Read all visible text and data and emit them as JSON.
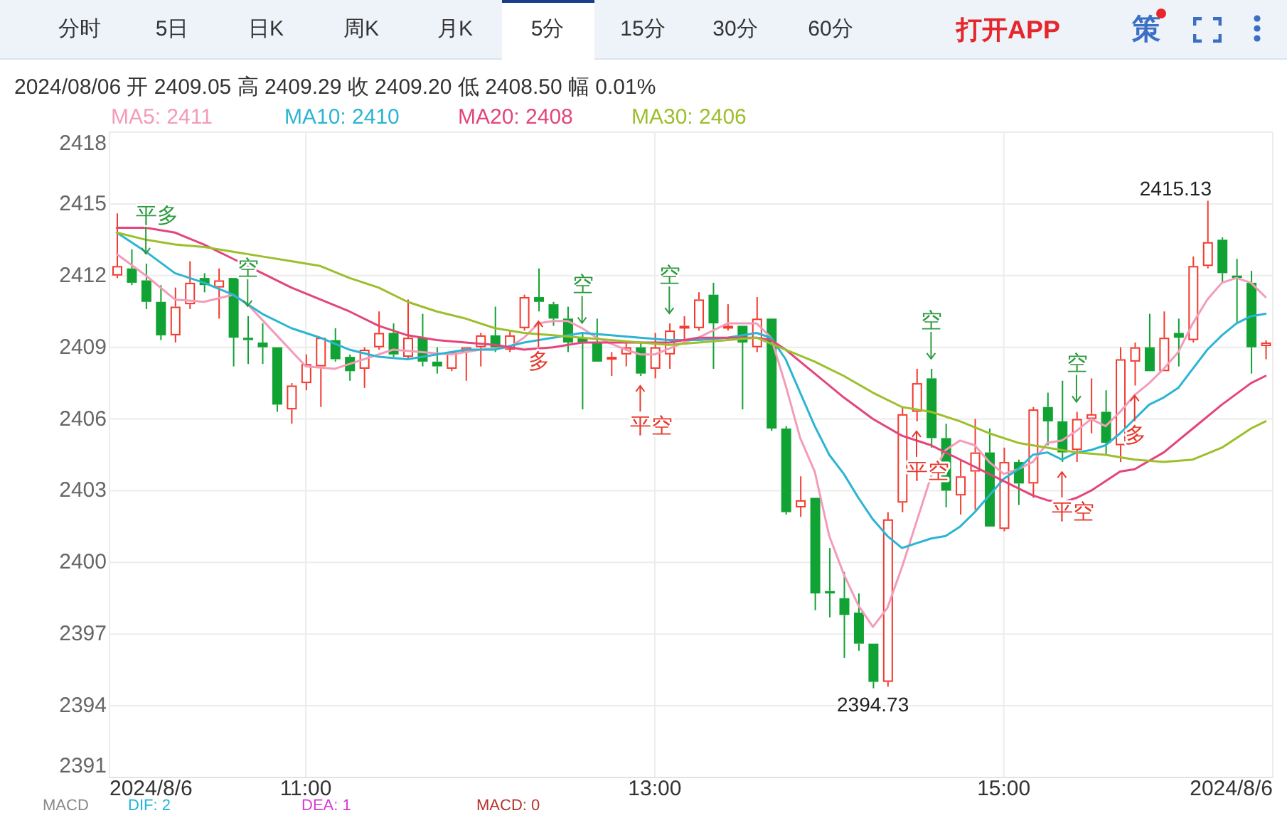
{
  "chart_data": {
    "type": "candlestick",
    "x": [
      "2024-08-06T09:55",
      "2024-08-06T10:00",
      "2024-08-06T10:05",
      "2024-08-06T10:10",
      "2024-08-06T10:15",
      "2024-08-06T10:20",
      "2024-08-06T10:25",
      "2024-08-06T10:30",
      "2024-08-06T10:35",
      "2024-08-06T10:40",
      "2024-08-06T10:45",
      "2024-08-06T10:50",
      "2024-08-06T10:55",
      "2024-08-06T11:00",
      "2024-08-06T11:05",
      "2024-08-06T11:10",
      "2024-08-06T11:15",
      "2024-08-06T11:20",
      "2024-08-06T11:25",
      "2024-08-06T11:30",
      "2024-08-06T11:35",
      "2024-08-06T11:40",
      "2024-08-06T11:45",
      "2024-08-06T11:50",
      "2024-08-06T11:55",
      "2024-08-06T12:00",
      "2024-08-06T12:05",
      "2024-08-06T12:10",
      "2024-08-06T12:15",
      "2024-08-06T12:20",
      "2024-08-06T12:25",
      "2024-08-06T12:30",
      "2024-08-06T12:35",
      "2024-08-06T12:40",
      "2024-08-06T12:45",
      "2024-08-06T12:50",
      "2024-08-06T12:55",
      "2024-08-06T13:00",
      "2024-08-06T13:05",
      "2024-08-06T13:10",
      "2024-08-06T13:15",
      "2024-08-06T13:20",
      "2024-08-06T13:25",
      "2024-08-06T13:30",
      "2024-08-06T13:35",
      "2024-08-06T13:40",
      "2024-08-06T13:45",
      "2024-08-06T13:50",
      "2024-08-06T13:55",
      "2024-08-06T14:00",
      "2024-08-06T14:05",
      "2024-08-06T14:10",
      "2024-08-06T14:15",
      "2024-08-06T14:20",
      "2024-08-06T14:25",
      "2024-08-06T14:30",
      "2024-08-06T14:35",
      "2024-08-06T14:40",
      "2024-08-06T14:45",
      "2024-08-06T14:50",
      "2024-08-06T14:55",
      "2024-08-06T15:00",
      "2024-08-06T15:05",
      "2024-08-06T15:10",
      "2024-08-06T15:15",
      "2024-08-06T15:20",
      "2024-08-06T15:25",
      "2024-08-06T15:30",
      "2024-08-06T15:35",
      "2024-08-06T15:40",
      "2024-08-06T15:45",
      "2024-08-06T15:50",
      "2024-08-06T15:55",
      "2024-08-06T16:00",
      "2024-08-06T16:05",
      "2024-08-06T16:10",
      "2024-08-06T16:15",
      "2024-08-06T16:20",
      "2024-08-06T16:25",
      "2024-08-06T16:30"
    ],
    "ohlc": [
      [
        2412.0,
        2414.6,
        2411.9,
        2412.4
      ],
      [
        2412.3,
        2413.1,
        2411.6,
        2411.7
      ],
      [
        2411.8,
        2412.5,
        2410.6,
        2410.9
      ],
      [
        2410.9,
        2411.6,
        2409.3,
        2409.5
      ],
      [
        2409.5,
        2411.5,
        2409.2,
        2410.7
      ],
      [
        2410.8,
        2412.6,
        2410.6,
        2411.7
      ],
      [
        2411.9,
        2412.1,
        2411.3,
        2411.6
      ],
      [
        2411.5,
        2412.3,
        2410.2,
        2411.8
      ],
      [
        2411.9,
        2411.9,
        2408.2,
        2409.4
      ],
      [
        2409.4,
        2410.3,
        2408.3,
        2409.3
      ],
      [
        2409.2,
        2410.0,
        2408.3,
        2409.0
      ],
      [
        2409.0,
        2409.0,
        2406.3,
        2406.6
      ],
      [
        2406.4,
        2407.5,
        2405.8,
        2407.4
      ],
      [
        2407.5,
        2408.7,
        2407.2,
        2408.3
      ],
      [
        2408.2,
        2409.4,
        2406.5,
        2409.4
      ],
      [
        2409.3,
        2409.8,
        2408.4,
        2408.5
      ],
      [
        2408.6,
        2408.7,
        2407.6,
        2408.0
      ],
      [
        2408.1,
        2409.0,
        2407.3,
        2408.9
      ],
      [
        2409.0,
        2410.5,
        2408.9,
        2409.6
      ],
      [
        2409.6,
        2410.0,
        2408.6,
        2408.7
      ],
      [
        2408.6,
        2411.0,
        2408.5,
        2409.4
      ],
      [
        2409.4,
        2410.4,
        2408.2,
        2408.4
      ],
      [
        2408.4,
        2409.0,
        2407.9,
        2408.2
      ],
      [
        2408.1,
        2408.8,
        2408.0,
        2408.8
      ],
      [
        2408.8,
        2409.0,
        2407.6,
        2409.0
      ],
      [
        2409.0,
        2409.6,
        2408.2,
        2409.5
      ],
      [
        2409.5,
        2410.7,
        2408.8,
        2409.0
      ],
      [
        2408.9,
        2409.7,
        2408.8,
        2409.5
      ],
      [
        2409.8,
        2411.2,
        2409.7,
        2411.1
      ],
      [
        2411.1,
        2412.3,
        2410.5,
        2410.9
      ],
      [
        2410.8,
        2410.9,
        2409.9,
        2410.2
      ],
      [
        2410.2,
        2410.7,
        2408.8,
        2409.2
      ],
      [
        2409.4,
        2409.6,
        2406.4,
        2409.2
      ],
      [
        2409.2,
        2410.2,
        2408.4,
        2408.4
      ],
      [
        2408.5,
        2408.8,
        2407.8,
        2408.6
      ],
      [
        2408.7,
        2409.2,
        2408.2,
        2409.0
      ],
      [
        2409.0,
        2409.2,
        2407.8,
        2407.9
      ],
      [
        2408.1,
        2409.6,
        2407.7,
        2409.0
      ],
      [
        2408.7,
        2410.0,
        2408.1,
        2409.7
      ],
      [
        2409.8,
        2410.3,
        2409.2,
        2409.9
      ],
      [
        2409.8,
        2411.3,
        2409.7,
        2411.0
      ],
      [
        2411.2,
        2411.7,
        2408.1,
        2410.0
      ],
      [
        2409.8,
        2410.8,
        2409.7,
        2409.9
      ],
      [
        2409.9,
        2409.9,
        2406.4,
        2409.2
      ],
      [
        2409.0,
        2411.1,
        2408.8,
        2410.2
      ],
      [
        2410.2,
        2410.2,
        2405.5,
        2405.6
      ],
      [
        2405.6,
        2405.7,
        2402.0,
        2402.1
      ],
      [
        2402.3,
        2403.6,
        2401.9,
        2402.6
      ],
      [
        2402.7,
        2402.7,
        2398.0,
        2398.7
      ],
      [
        2398.8,
        2400.6,
        2397.7,
        2398.7
      ],
      [
        2398.5,
        2399.6,
        2396.0,
        2397.8
      ],
      [
        2397.9,
        2398.7,
        2396.3,
        2396.6
      ],
      [
        2396.6,
        2396.6,
        2394.73,
        2395.0
      ],
      [
        2395.0,
        2402.1,
        2394.8,
        2401.8
      ],
      [
        2402.5,
        2406.5,
        2402.1,
        2406.2
      ],
      [
        2406.3,
        2408.1,
        2405.9,
        2407.5
      ],
      [
        2407.7,
        2408.1,
        2404.8,
        2405.2
      ],
      [
        2405.2,
        2405.8,
        2402.3,
        2403.0
      ],
      [
        2402.8,
        2404.3,
        2402.0,
        2403.6
      ],
      [
        2403.8,
        2406.0,
        2402.2,
        2404.6
      ],
      [
        2404.6,
        2405.6,
        2401.5,
        2401.5
      ],
      [
        2401.4,
        2404.8,
        2401.3,
        2404.2
      ],
      [
        2404.2,
        2404.3,
        2402.4,
        2403.3
      ],
      [
        2403.3,
        2406.5,
        2402.7,
        2406.4
      ],
      [
        2406.5,
        2407.1,
        2404.9,
        2405.9
      ],
      [
        2405.9,
        2407.6,
        2404.2,
        2404.6
      ],
      [
        2404.7,
        2406.3,
        2404.2,
        2406.0
      ],
      [
        2406.0,
        2407.7,
        2405.4,
        2406.2
      ],
      [
        2406.3,
        2407.2,
        2404.5,
        2405.0
      ],
      [
        2404.9,
        2409.0,
        2404.2,
        2408.5
      ],
      [
        2408.4,
        2409.2,
        2407.4,
        2409.0
      ],
      [
        2409.0,
        2410.4,
        2408.0,
        2408.0
      ],
      [
        2408.0,
        2410.5,
        2408.0,
        2409.4
      ],
      [
        2409.6,
        2410.2,
        2408.2,
        2409.4
      ],
      [
        2409.3,
        2412.8,
        2409.2,
        2412.4
      ],
      [
        2412.4,
        2415.13,
        2412.3,
        2413.4
      ],
      [
        2413.5,
        2413.6,
        2411.7,
        2412.1
      ],
      [
        2412.0,
        2412.7,
        2410.0,
        2411.9
      ],
      [
        2411.7,
        2412.2,
        2407.9,
        2409.0
      ],
      [
        2409.05,
        2409.29,
        2408.5,
        2409.2
      ]
    ],
    "colors": [
      "#f23a2e",
      "#10a232",
      "#10a232",
      "#10a232",
      "#f23a2e",
      "#f23a2e",
      "#10a232",
      "#f23a2e",
      "#10a232",
      "#10a232",
      "#10a232",
      "#10a232",
      "#f23a2e",
      "#f23a2e",
      "#f23a2e",
      "#10a232",
      "#10a232",
      "#f23a2e",
      "#f23a2e",
      "#10a232",
      "#f23a2e",
      "#10a232",
      "#10a232",
      "#f23a2e",
      "#f23a2e",
      "#f23a2e",
      "#10a232",
      "#f23a2e",
      "#f23a2e",
      "#10a232",
      "#10a232",
      "#10a232",
      "#10a232",
      "#10a232",
      "#f23a2e",
      "#f23a2e",
      "#10a232",
      "#f23a2e",
      "#f23a2e",
      "#f23a2e",
      "#f23a2e",
      "#10a232",
      "#f23a2e",
      "#10a232",
      "#f23a2e",
      "#10a232",
      "#10a232",
      "#f23a2e",
      "#10a232",
      "#10a232",
      "#10a232",
      "#10a232",
      "#10a232",
      "#f23a2e",
      "#f23a2e",
      "#f23a2e",
      "#10a232",
      "#10a232",
      "#f23a2e",
      "#f23a2e",
      "#10a232",
      "#f23a2e",
      "#10a232",
      "#f23a2e",
      "#10a232",
      "#10a232",
      "#f23a2e",
      "#f23a2e",
      "#10a232",
      "#f23a2e",
      "#f23a2e",
      "#10a232",
      "#f23a2e",
      "#10a232",
      "#f23a2e",
      "#f23a2e",
      "#10a232",
      "#10a232",
      "#10a232",
      "#f23a2e"
    ],
    "series": [
      {
        "type": "line",
        "name": "MA5: 2411",
        "color": "#f39cb9",
        "x": [
          "2024-08-06T09:55",
          "2024-08-06T10:05",
          "2024-08-06T10:15",
          "2024-08-06T10:25",
          "2024-08-06T10:35",
          "2024-08-06T10:40",
          "2024-08-06T10:50",
          "2024-08-06T11:00",
          "2024-08-06T11:10",
          "2024-08-06T11:20",
          "2024-08-06T11:30",
          "2024-08-06T11:40",
          "2024-08-06T11:50",
          "2024-08-06T12:00",
          "2024-08-06T12:10",
          "2024-08-06T12:15",
          "2024-08-06T12:20",
          "2024-08-06T12:25",
          "2024-08-06T12:30",
          "2024-08-06T12:35",
          "2024-08-06T12:40",
          "2024-08-06T12:50",
          "2024-08-06T12:55",
          "2024-08-06T13:00",
          "2024-08-06T13:10",
          "2024-08-06T13:15",
          "2024-08-06T13:25",
          "2024-08-06T13:35",
          "2024-08-06T13:40",
          "2024-08-06T13:45",
          "2024-08-06T13:50",
          "2024-08-06T13:55",
          "2024-08-06T14:00",
          "2024-08-06T14:05",
          "2024-08-06T14:10",
          "2024-08-06T14:15",
          "2024-08-06T14:20",
          "2024-08-06T14:25",
          "2024-08-06T14:30",
          "2024-08-06T14:35",
          "2024-08-06T14:40",
          "2024-08-06T14:45",
          "2024-08-06T14:50",
          "2024-08-06T14:55",
          "2024-08-06T15:00",
          "2024-08-06T15:05",
          "2024-08-06T15:10",
          "2024-08-06T15:15",
          "2024-08-06T15:20",
          "2024-08-06T15:25",
          "2024-08-06T15:30",
          "2024-08-06T15:35",
          "2024-08-06T15:40",
          "2024-08-06T15:45",
          "2024-08-06T15:50",
          "2024-08-06T15:55",
          "2024-08-06T16:00",
          "2024-08-06T16:05",
          "2024-08-06T16:10",
          "2024-08-06T16:15",
          "2024-08-06T16:20",
          "2024-08-06T16:25",
          "2024-08-06T16:30"
        ],
        "values": [
          2412.9,
          2412.0,
          2411.0,
          2410.9,
          2411.2,
          2410.8,
          2409.5,
          2408.2,
          2408.1,
          2408.5,
          2408.9,
          2408.8,
          2408.7,
          2408.9,
          2409.0,
          2409.4,
          2410.0,
          2410.1,
          2410.1,
          2409.8,
          2409.4,
          2408.9,
          2408.7,
          2408.7,
          2409.2,
          2409.4,
          2410.0,
          2410.0,
          2409.4,
          2407.4,
          2405.2,
          2403.8,
          2401.1,
          2399.5,
          2398.2,
          2397.3,
          2398.1,
          2399.8,
          2401.7,
          2403.6,
          2404.7,
          2405.1,
          2404.9,
          2404.2,
          2403.7,
          2403.9,
          2404.2,
          2405.0,
          2405.1,
          2405.5,
          2406.0,
          2405.7,
          2406.3,
          2407.0,
          2407.5,
          2408.1,
          2408.8,
          2410.0,
          2411.0,
          2411.7,
          2411.9,
          2411.7,
          2411.1
        ]
      },
      {
        "type": "line",
        "name": "MA10: 2410",
        "color": "#2bb5d3",
        "x": [
          "2024-08-06T09:55",
          "2024-08-06T10:05",
          "2024-08-06T10:15",
          "2024-08-06T10:25",
          "2024-08-06T10:35",
          "2024-08-06T10:45",
          "2024-08-06T10:55",
          "2024-08-06T11:05",
          "2024-08-06T11:15",
          "2024-08-06T11:25",
          "2024-08-06T11:35",
          "2024-08-06T11:45",
          "2024-08-06T11:55",
          "2024-08-06T12:05",
          "2024-08-06T12:15",
          "2024-08-06T12:25",
          "2024-08-06T12:35",
          "2024-08-06T12:45",
          "2024-08-06T12:55",
          "2024-08-06T13:05",
          "2024-08-06T13:15",
          "2024-08-06T13:25",
          "2024-08-06T13:35",
          "2024-08-06T13:40",
          "2024-08-06T13:45",
          "2024-08-06T13:50",
          "2024-08-06T13:55",
          "2024-08-06T14:00",
          "2024-08-06T14:05",
          "2024-08-06T14:10",
          "2024-08-06T14:15",
          "2024-08-06T14:20",
          "2024-08-06T14:25",
          "2024-08-06T14:30",
          "2024-08-06T14:35",
          "2024-08-06T14:40",
          "2024-08-06T14:45",
          "2024-08-06T14:50",
          "2024-08-06T14:55",
          "2024-08-06T15:00",
          "2024-08-06T15:05",
          "2024-08-06T15:10",
          "2024-08-06T15:15",
          "2024-08-06T15:20",
          "2024-08-06T15:25",
          "2024-08-06T15:30",
          "2024-08-06T15:35",
          "2024-08-06T15:40",
          "2024-08-06T15:45",
          "2024-08-06T15:50",
          "2024-08-06T15:55",
          "2024-08-06T16:00",
          "2024-08-06T16:05",
          "2024-08-06T16:10",
          "2024-08-06T16:15",
          "2024-08-06T16:20",
          "2024-08-06T16:25",
          "2024-08-06T16:30"
        ],
        "values": [
          2413.8,
          2413.0,
          2412.1,
          2411.7,
          2411.2,
          2410.4,
          2409.8,
          2409.4,
          2408.9,
          2408.6,
          2408.5,
          2408.7,
          2408.9,
          2408.9,
          2409.2,
          2409.4,
          2409.6,
          2409.5,
          2409.4,
          2409.3,
          2409.3,
          2409.4,
          2409.6,
          2409.4,
          2408.5,
          2407.1,
          2405.7,
          2404.5,
          2403.7,
          2402.7,
          2401.8,
          2401.1,
          2400.6,
          2400.8,
          2401.0,
          2401.1,
          2401.5,
          2402.1,
          2402.8,
          2403.5,
          2403.9,
          2404.5,
          2404.6,
          2404.3,
          2404.6,
          2404.7,
          2404.9,
          2405.4,
          2406.0,
          2406.6,
          2406.9,
          2407.3,
          2408.1,
          2408.9,
          2409.5,
          2410.0,
          2410.3,
          2410.4
        ]
      },
      {
        "type": "line",
        "name": "MA20: 2408",
        "color": "#e3457c",
        "x": [
          "2024-08-06T09:55",
          "2024-08-06T10:05",
          "2024-08-06T10:15",
          "2024-08-06T10:25",
          "2024-08-06T10:35",
          "2024-08-06T10:45",
          "2024-08-06T10:55",
          "2024-08-06T11:05",
          "2024-08-06T11:15",
          "2024-08-06T11:25",
          "2024-08-06T11:35",
          "2024-08-06T11:45",
          "2024-08-06T11:55",
          "2024-08-06T12:05",
          "2024-08-06T12:15",
          "2024-08-06T12:25",
          "2024-08-06T12:35",
          "2024-08-06T12:45",
          "2024-08-06T12:55",
          "2024-08-06T13:05",
          "2024-08-06T13:15",
          "2024-08-06T13:25",
          "2024-08-06T13:35",
          "2024-08-06T13:40",
          "2024-08-06T13:45",
          "2024-08-06T13:55",
          "2024-08-06T14:05",
          "2024-08-06T14:15",
          "2024-08-06T14:25",
          "2024-08-06T14:35",
          "2024-08-06T14:45",
          "2024-08-06T14:55",
          "2024-08-06T15:05",
          "2024-08-06T15:10",
          "2024-08-06T15:15",
          "2024-08-06T15:20",
          "2024-08-06T15:25",
          "2024-08-06T15:30",
          "2024-08-06T15:35",
          "2024-08-06T15:40",
          "2024-08-06T15:45",
          "2024-08-06T15:55",
          "2024-08-06T16:05",
          "2024-08-06T16:15",
          "2024-08-06T16:25",
          "2024-08-06T16:30"
        ],
        "values": [
          2414.0,
          2414.0,
          2413.8,
          2413.3,
          2412.7,
          2412.1,
          2411.5,
          2411.0,
          2410.5,
          2409.9,
          2409.5,
          2409.3,
          2409.2,
          2409.1,
          2408.9,
          2409.0,
          2409.2,
          2409.2,
          2409.2,
          2409.2,
          2409.4,
          2409.4,
          2409.4,
          2409.3,
          2408.9,
          2407.9,
          2406.9,
          2406.0,
          2405.3,
          2404.9,
          2404.3,
          2403.7,
          2403.1,
          2402.8,
          2402.6,
          2402.5,
          2402.7,
          2403.0,
          2403.4,
          2403.8,
          2403.9,
          2404.6,
          2405.6,
          2406.6,
          2407.5,
          2407.8
        ]
      },
      {
        "type": "line",
        "name": "MA30: 2406",
        "color": "#9cbf2b",
        "x": [
          "2024-08-06T09:55",
          "2024-08-06T10:05",
          "2024-08-06T10:15",
          "2024-08-06T10:25",
          "2024-08-06T10:35",
          "2024-08-06T10:45",
          "2024-08-06T10:55",
          "2024-08-06T11:05",
          "2024-08-06T11:15",
          "2024-08-06T11:25",
          "2024-08-06T11:35",
          "2024-08-06T11:45",
          "2024-08-06T11:55",
          "2024-08-06T12:05",
          "2024-08-06T12:15",
          "2024-08-06T12:25",
          "2024-08-06T12:35",
          "2024-08-06T12:45",
          "2024-08-06T12:55",
          "2024-08-06T13:05",
          "2024-08-06T13:15",
          "2024-08-06T13:25",
          "2024-08-06T13:35",
          "2024-08-06T13:45",
          "2024-08-06T13:55",
          "2024-08-06T14:05",
          "2024-08-06T14:15",
          "2024-08-06T14:25",
          "2024-08-06T14:35",
          "2024-08-06T14:45",
          "2024-08-06T14:55",
          "2024-08-06T15:05",
          "2024-08-06T15:15",
          "2024-08-06T15:25",
          "2024-08-06T15:35",
          "2024-08-06T15:45",
          "2024-08-06T15:55",
          "2024-08-06T16:05",
          "2024-08-06T16:15",
          "2024-08-06T16:25",
          "2024-08-06T16:30"
        ],
        "values": [
          2413.8,
          2413.5,
          2413.3,
          2413.2,
          2413.0,
          2412.8,
          2412.6,
          2412.4,
          2411.9,
          2411.5,
          2410.9,
          2410.5,
          2410.2,
          2409.8,
          2409.6,
          2409.5,
          2409.4,
          2409.3,
          2409.2,
          2409.1,
          2409.2,
          2409.3,
          2409.4,
          2408.9,
          2408.4,
          2407.8,
          2407.1,
          2406.5,
          2406.3,
          2405.9,
          2405.4,
          2405.0,
          2404.8,
          2404.6,
          2404.5,
          2404.3,
          2404.2,
          2404.3,
          2404.8,
          2405.6,
          2405.9
        ]
      }
    ],
    "xlim": [
      "2024-08-06T09:52:30",
      "2024-08-06T16:32:30"
    ],
    "xticks": [
      {
        "value": "2024-08-06T09:52:30",
        "label": "2024/8/6"
      },
      {
        "value": "2024-08-06T11:00",
        "label": "11:00"
      },
      {
        "value": "2024-08-06T13:00",
        "label": "13:00"
      },
      {
        "value": "2024-08-06T15:00",
        "label": "15:00"
      },
      {
        "value": "2024-08-06T16:32:30",
        "label": "2024/8/6"
      }
    ],
    "ylim": [
      2391,
      2418
    ],
    "yticks": [
      2391,
      2394,
      2397,
      2400,
      2403,
      2406,
      2409,
      2412,
      2415,
      2418
    ],
    "grid": true,
    "legend": "top left",
    "annotations": [
      "分时",
      "5日",
      "日K",
      "周K",
      "月K",
      "5分",
      "15分",
      "30分",
      "60分",
      "打开APP",
      "策",
      "2024/08/06 开 2409.05 高 2409.29 收 2409.20 低 2408.50 幅 0.01%",
      "MACD",
      "DIF: 2",
      "DEA: 1",
      "MACD: 0",
      {
        "text": "2415.13",
        "x": "2024-08-06T16:10",
        "y": 2415.13
      },
      {
        "text": "2394.73",
        "x": "2024-08-06T14:15",
        "y": 2394.73
      },
      {
        "text": "平多",
        "x": "2024-08-06T10:05",
        "y": 2412.5
      },
      {
        "text": "空",
        "x": "2024-08-06T10:40",
        "y": 2410.3
      },
      {
        "text": "多",
        "x": "2024-08-06T12:20",
        "y": 2410.5
      },
      {
        "text": "空",
        "x": "2024-08-06T12:35",
        "y": 2409.6
      },
      {
        "text": "平空",
        "x": "2024-08-06T12:55",
        "y": 2407.8
      },
      {
        "text": "空",
        "x": "2024-08-06T13:05",
        "y": 2410.0
      },
      {
        "text": "平空",
        "x": "2024-08-06T14:30",
        "y": 2405.9
      },
      {
        "text": "空",
        "x": "2024-08-06T14:35",
        "y": 2408.1
      },
      {
        "text": "平空",
        "x": "2024-08-06T15:20",
        "y": 2404.2
      },
      {
        "text": "空",
        "x": "2024-08-06T15:25",
        "y": 2406.3
      },
      {
        "text": "多",
        "x": "2024-08-06T15:45",
        "y": 2407.4
      }
    ]
  }
}
